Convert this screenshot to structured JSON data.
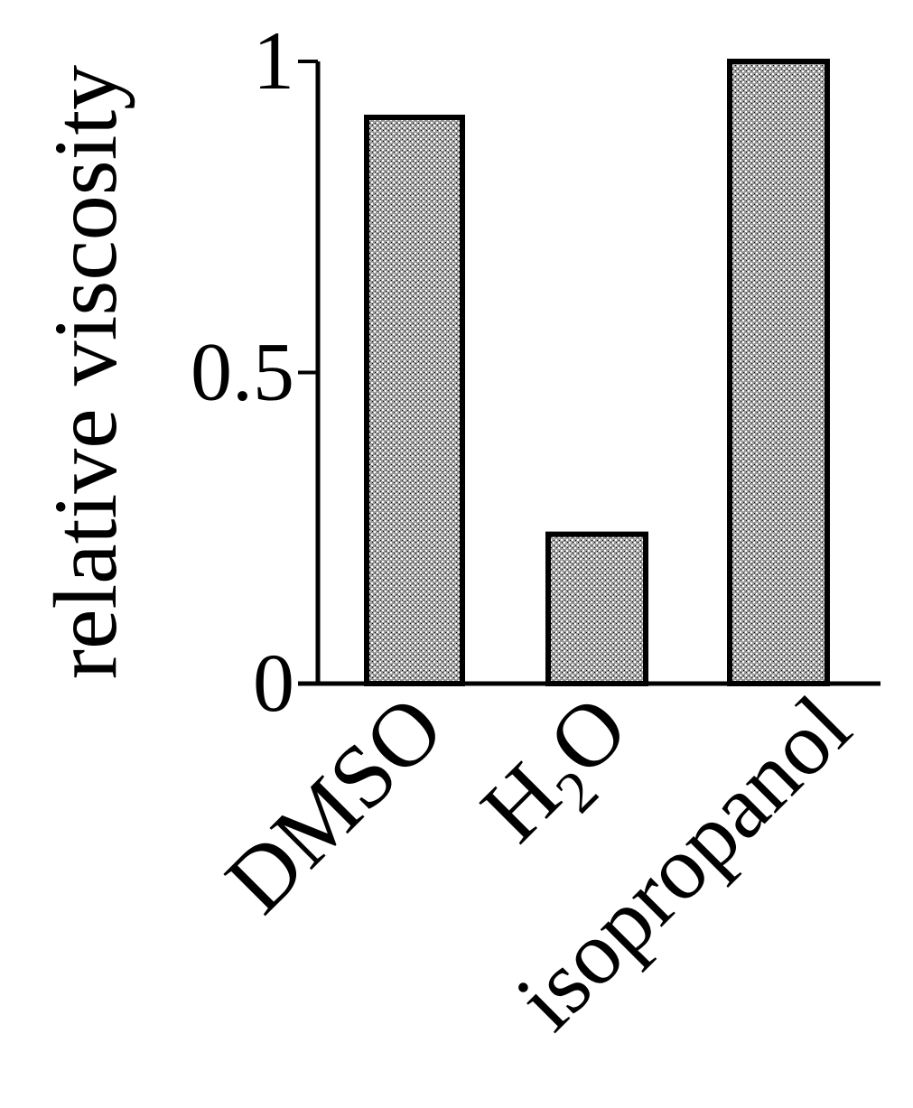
{
  "chart_data": {
    "type": "bar",
    "categories": [
      {
        "base": "DMSO",
        "sub": "",
        "tail": ""
      },
      {
        "base": "H",
        "sub": "2",
        "tail": "O"
      },
      {
        "base": "isopropanol",
        "sub": "",
        "tail": ""
      }
    ],
    "values": [
      0.91,
      0.24,
      1.0
    ],
    "title": "",
    "xlabel": "",
    "ylabel": "relative viscosity",
    "ylim": [
      0,
      1
    ],
    "yticks": [
      {
        "value": 0,
        "label": "0"
      },
      {
        "value": 0.5,
        "label": "0.5"
      },
      {
        "value": 1,
        "label": "1"
      }
    ],
    "grid": false,
    "legend": "none",
    "colors": {
      "bar_fill": "#8c8c8c",
      "bar_edge": "#000000",
      "axis": "#000000"
    }
  }
}
